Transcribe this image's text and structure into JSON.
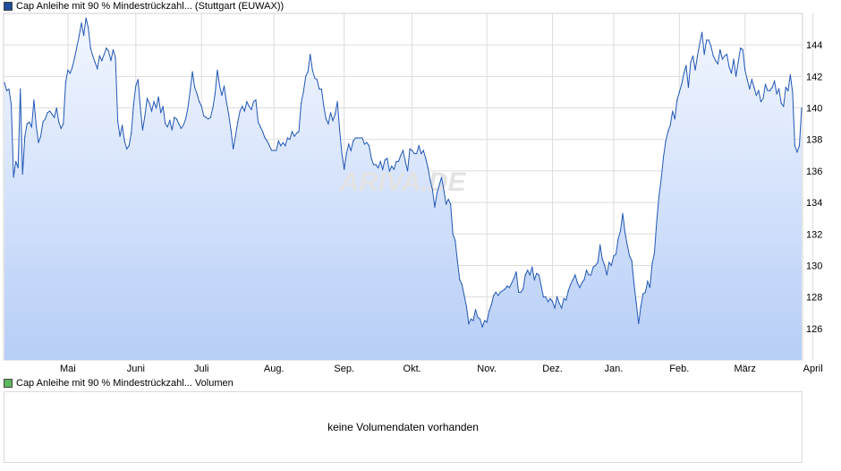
{
  "legend": {
    "price_label": "Cap Anleihe mit 90 % Mindestrückzahl... (Stuttgart (EUWAX))",
    "price_color": "#1f4e9e",
    "volume_label": "Cap Anleihe mit 90 % Mindestrückzahl... Volumen",
    "volume_color": "#5cb85c"
  },
  "volume_panel": {
    "message": "keine Volumendaten vorhanden"
  },
  "watermark": "ARIVA.DE",
  "chart_data": {
    "type": "area",
    "title": "",
    "xlabel": "",
    "ylabel": "",
    "ylim": [
      124.0,
      146.0
    ],
    "yticks": [
      126,
      128,
      130,
      132,
      134,
      136,
      138,
      140,
      142,
      144
    ],
    "grid": true,
    "line_color": "#2257b5",
    "fill_top_color": "#f3f7ff",
    "fill_bottom_color": "#b7cef7",
    "x_ticks": [
      {
        "label": "Mai",
        "index": 28
      },
      {
        "label": "Juni",
        "index": 58
      },
      {
        "label": "Juli",
        "index": 87
      },
      {
        "label": "Aug.",
        "index": 119
      },
      {
        "label": "Sep.",
        "index": 150
      },
      {
        "label": "Okt.",
        "index": 180
      },
      {
        "label": "Nov.",
        "index": 213
      },
      {
        "label": "Dez.",
        "index": 242
      },
      {
        "label": "Jan.",
        "index": 269
      },
      {
        "label": "Feb.",
        "index": 298
      },
      {
        "label": "März",
        "index": 327
      },
      {
        "label": "April",
        "index": 357
      }
    ],
    "series": [
      {
        "values": [
          141.6,
          141.1,
          141.2,
          140.2,
          135.6,
          136.6,
          136.2,
          141.2,
          135.8,
          138.2,
          139.0,
          139.1,
          138.8,
          140.5,
          138.9,
          137.8,
          138.2,
          139.1,
          139.3,
          139.7,
          139.8,
          139.6,
          139.4,
          140.0,
          139.1,
          138.7,
          139.0,
          141.6,
          142.4,
          142.2,
          142.6,
          143.2,
          143.9,
          144.6,
          145.4,
          144.6,
          145.7,
          145.1,
          143.8,
          143.3,
          142.9,
          142.5,
          143.3,
          143.0,
          143.4,
          143.8,
          143.6,
          143.0,
          143.7,
          143.2,
          139.2,
          138.2,
          138.9,
          137.9,
          137.4,
          137.6,
          138.4,
          140.2,
          141.4,
          141.8,
          140.0,
          138.6,
          139.5,
          140.6,
          140.3,
          139.8,
          140.4,
          140.0,
          140.7,
          139.7,
          140.1,
          139.0,
          138.8,
          139.2,
          138.6,
          139.4,
          139.3,
          139.0,
          138.7,
          138.9,
          139.3,
          140.0,
          141.1,
          142.3,
          141.3,
          140.9,
          140.4,
          140.1,
          139.5,
          139.4,
          139.3,
          139.4,
          140.0,
          140.9,
          142.4,
          141.4,
          140.8,
          141.4,
          140.4,
          139.6,
          138.6,
          137.4,
          138.2,
          139.1,
          139.8,
          140.1,
          139.8,
          140.4,
          140.1,
          139.9,
          140.4,
          140.5,
          139.1,
          138.8,
          138.5,
          138.1,
          137.9,
          137.6,
          137.3,
          137.3,
          137.3,
          137.9,
          137.6,
          137.8,
          137.6,
          138.1,
          138.0,
          138.5,
          138.2,
          138.4,
          138.5,
          140.3,
          141.0,
          142.0,
          142.3,
          143.4,
          142.4,
          141.9,
          141.8,
          141.2,
          141.2,
          140.1,
          139.3,
          139.0,
          139.7,
          139.2,
          139.6,
          140.4,
          138.6,
          137.1,
          136.1,
          137.1,
          137.7,
          137.3,
          137.9,
          138.1,
          138.1,
          138.1,
          138.1,
          137.7,
          137.8,
          137.6,
          136.8,
          136.4,
          136.4,
          136.2,
          136.6,
          136.1,
          136.7,
          136.8,
          136.0,
          136.3,
          136.1,
          136.6,
          136.6,
          137.0,
          137.3,
          136.6,
          136.0,
          137.4,
          137.3,
          137.1,
          137.1,
          137.6,
          137.1,
          137.3,
          136.8,
          136.2,
          135.4,
          134.8,
          133.7,
          134.6,
          135.1,
          135.6,
          134.8,
          133.9,
          134.2,
          133.9,
          132.0,
          131.6,
          130.3,
          129.1,
          128.8,
          128.1,
          127.4,
          126.3,
          126.6,
          126.5,
          127.2,
          126.7,
          126.6,
          126.1,
          126.5,
          126.4,
          127.1,
          127.5,
          128.1,
          128.3,
          128.1,
          128.3,
          128.4,
          128.5,
          128.7,
          128.6,
          128.9,
          129.2,
          129.6,
          128.3,
          128.3,
          128.5,
          129.4,
          129.7,
          129.4,
          129.9,
          129.1,
          129.5,
          129.4,
          128.7,
          128.0,
          128.0,
          127.7,
          127.9,
          127.7,
          127.3,
          128.0,
          127.6,
          127.3,
          127.9,
          127.8,
          128.4,
          128.8,
          129.1,
          129.4,
          128.9,
          128.6,
          128.9,
          129.1,
          129.7,
          129.4,
          129.4,
          129.9,
          130.0,
          130.2,
          131.3,
          130.4,
          130.0,
          129.4,
          130.2,
          130.0,
          130.6,
          130.7,
          131.7,
          132.2,
          133.3,
          132.1,
          131.3,
          130.6,
          130.3,
          128.8,
          127.6,
          126.3,
          127.4,
          128.2,
          128.3,
          129.0,
          128.6,
          130.1,
          130.8,
          132.8,
          134.4,
          135.5,
          136.9,
          137.9,
          138.5,
          138.9,
          139.8,
          139.3,
          140.5,
          141.0,
          141.5,
          142.2,
          142.7,
          141.3,
          142.9,
          143.3,
          142.4,
          143.3,
          144.1,
          144.8,
          143.4,
          144.3,
          144.3,
          143.9,
          143.3,
          143.0,
          142.8,
          143.7,
          143.1,
          143.3,
          143.4,
          142.6,
          142.2,
          143.1,
          142.0,
          142.9,
          143.8,
          143.7,
          142.4,
          141.8,
          141.2,
          141.8,
          141.3,
          140.8,
          141.1,
          140.4,
          140.6,
          141.5,
          141.1,
          141.1,
          141.3,
          141.7,
          140.9,
          141.2,
          140.3,
          140.1,
          141.3,
          141.1,
          142.1,
          141.0,
          137.6,
          137.2,
          137.6,
          140.0
        ]
      }
    ]
  }
}
